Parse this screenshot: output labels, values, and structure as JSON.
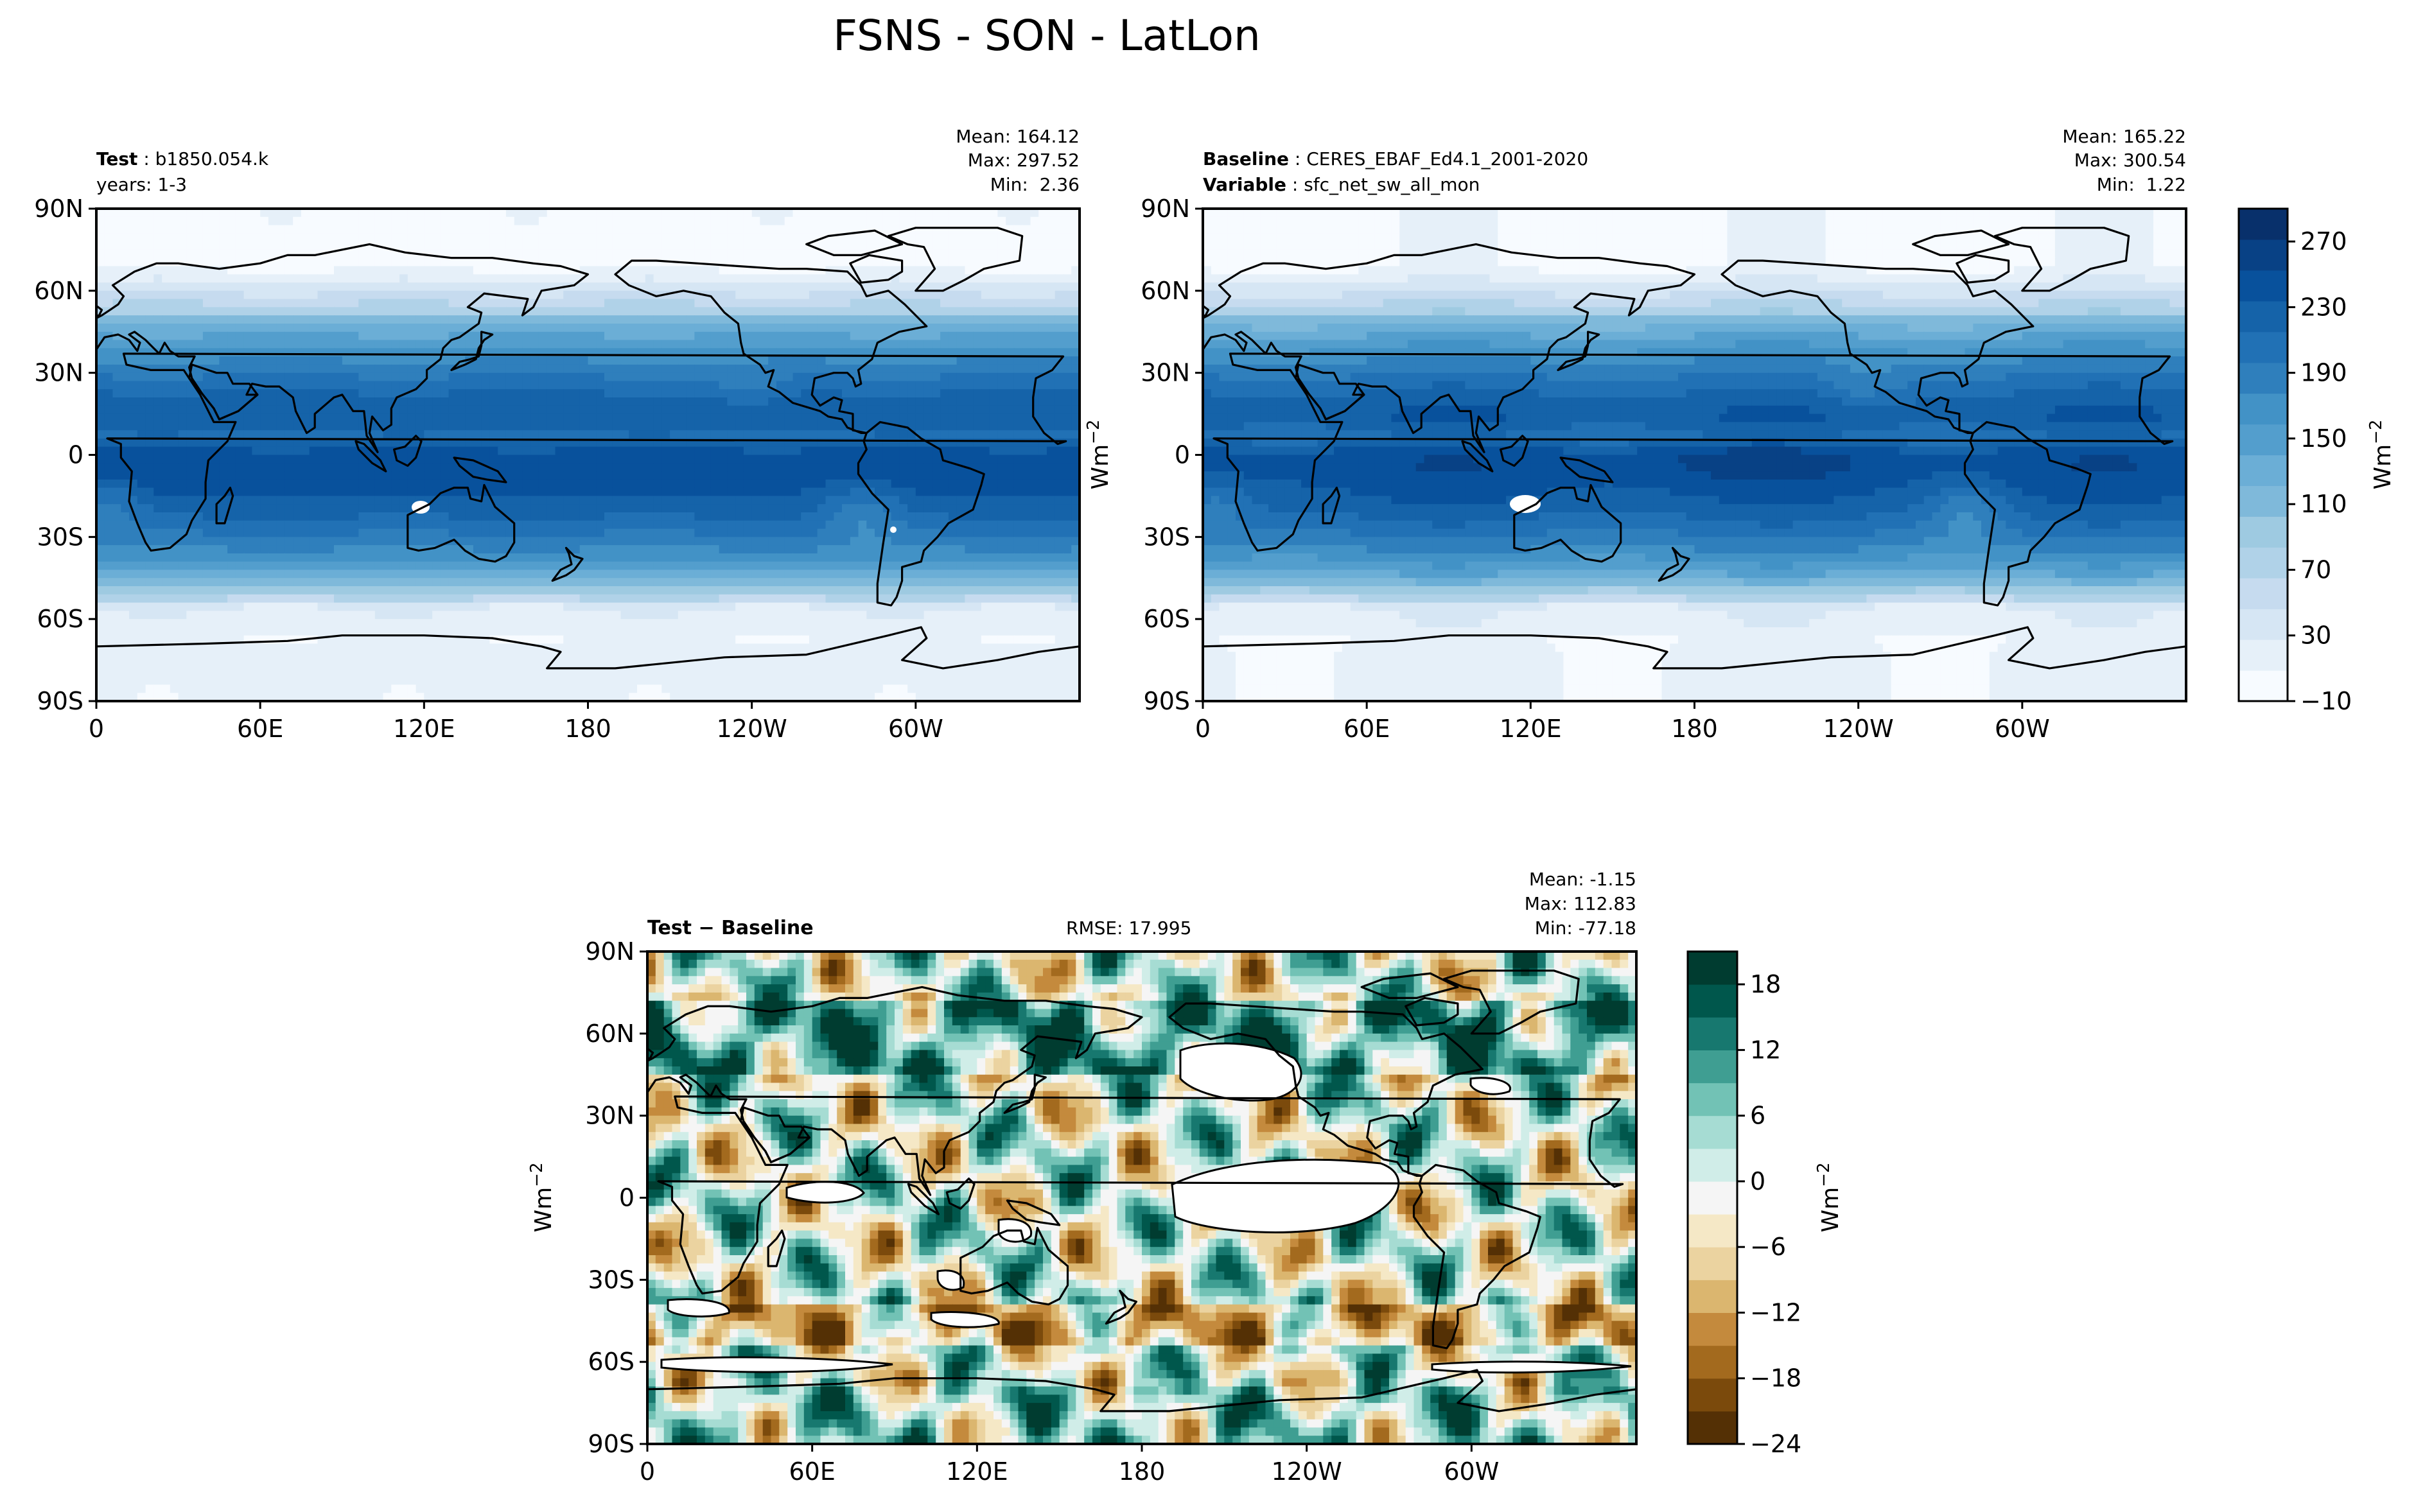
{
  "title": "FSNS - SON - LatLon",
  "colors": {
    "blues": [
      "#f7fbff",
      "#e6f0f9",
      "#d6e6f4",
      "#c6dbef",
      "#b0d2e8",
      "#9ecae1",
      "#7fb9da",
      "#6baed6",
      "#539ecd",
      "#4292c6",
      "#2f7fbc",
      "#2171b5",
      "#1563a9",
      "#08519c",
      "#084185",
      "#08306b"
    ],
    "diff": [
      "#543005",
      "#7b4a0c",
      "#a36a1e",
      "#c48a3d",
      "#dbb66f",
      "#ebd3a0",
      "#f5e8c6",
      "#f5f5f5",
      "#d0ede8",
      "#a6dcd3",
      "#72c2b5",
      "#3f9e92",
      "#17786f",
      "#00574c",
      "#003c30"
    ],
    "land": "#ffffff",
    "coast": "#000000"
  },
  "chart_data": [
    {
      "type": "heatmap",
      "panel": "test",
      "label_bold": "Test",
      "label_value": "b1850.054.k",
      "label_line2": "years: 1-3",
      "stats": {
        "mean": "Mean: 164.12",
        "max": "Max: 297.52",
        "min": "Min:  2.36"
      },
      "x_ticks": [
        "0",
        "60E",
        "120E",
        "180",
        "120W",
        "60W"
      ],
      "y_ticks": [
        "90N",
        "60N",
        "30N",
        "0",
        "30S",
        "60S",
        "90S"
      ],
      "xlim": [
        0,
        360
      ],
      "ylim": [
        -90,
        90
      ],
      "grid": false
    },
    {
      "type": "heatmap",
      "panel": "baseline",
      "label_bold": "Baseline",
      "label_value": "CERES_EBAF_Ed4.1_2001-2020",
      "label_bold2": "Variable",
      "label_value2": "sfc_net_sw_all_mon",
      "stats": {
        "mean": "Mean: 165.22",
        "max": "Max: 300.54",
        "min": "Min:  1.22"
      },
      "x_ticks": [
        "0",
        "60E",
        "120E",
        "180",
        "120W",
        "60W"
      ],
      "y_ticks": [
        "90N",
        "60N",
        "30N",
        "0",
        "30S",
        "60S",
        "90S"
      ],
      "xlim": [
        0,
        360
      ],
      "ylim": [
        -90,
        90
      ],
      "colorbar": {
        "ticks": [
          "270",
          "230",
          "190",
          "150",
          "110",
          "70",
          "30",
          "−10"
        ],
        "label": "Wm",
        "label_sup": "−2",
        "range": [
          -10,
          290
        ]
      },
      "unit_left": "Wm",
      "unit_left_sup": "−2"
    },
    {
      "type": "heatmap",
      "panel": "difference",
      "label_left": "Test − Baseline",
      "rmse": "RMSE: 17.995",
      "stats": {
        "mean": "Mean: -1.15",
        "max": "Max: 112.83",
        "min": "Min: -77.18"
      },
      "x_ticks": [
        "0",
        "60E",
        "120E",
        "180",
        "120W",
        "60W"
      ],
      "y_ticks": [
        "90N",
        "60N",
        "30N",
        "0",
        "30S",
        "60S",
        "90S"
      ],
      "xlim": [
        0,
        360
      ],
      "ylim": [
        -90,
        90
      ],
      "colorbar": {
        "ticks": [
          "18",
          "12",
          "6",
          "0",
          "−6",
          "−12",
          "−18",
          "−24"
        ],
        "label": "Wm",
        "label_sup": "−2",
        "range": [
          -24,
          21
        ]
      },
      "unit_left": "Wm",
      "unit_left_sup": "−2"
    }
  ]
}
